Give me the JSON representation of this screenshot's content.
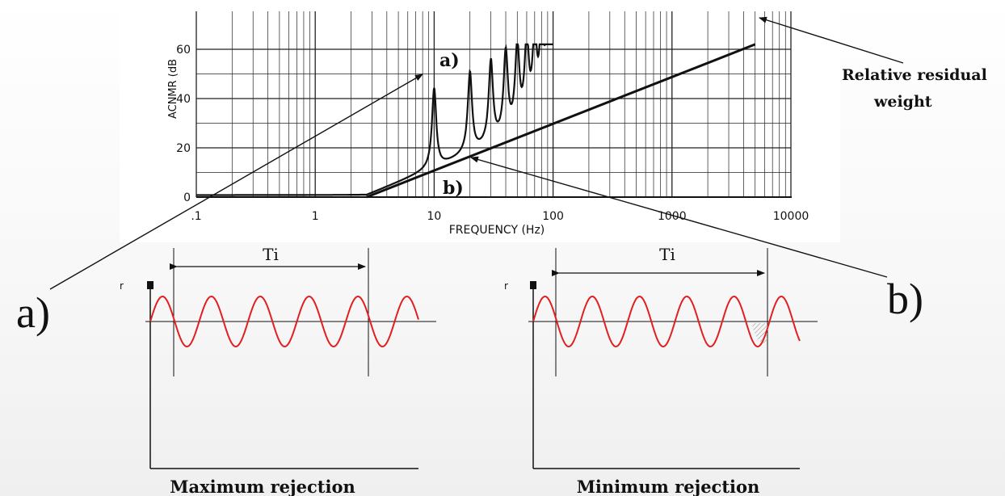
{
  "chart_data": {
    "type": "line",
    "xlabel": "FREQUENCY (Hz)",
    "ylabel": "ACNMR (dB",
    "x_scale": "log",
    "xlim": [
      0.1,
      10000
    ],
    "ylim": [
      0,
      62
    ],
    "x_ticks": [
      ".1",
      "1",
      "10",
      "100",
      "1000",
      "10000"
    ],
    "y_ticks": [
      "0",
      "20",
      "40",
      "60"
    ],
    "grid": true,
    "residual_weight_line": {
      "x": [
        2.7,
        5000
      ],
      "y": [
        0,
        62
      ]
    },
    "resonance_peaks": {
      "x": [
        10,
        20,
        30,
        40,
        50,
        60,
        70,
        80,
        90,
        100
      ],
      "y": [
        43,
        49,
        53,
        56,
        58,
        59.5,
        60.5,
        61,
        61.5,
        62
      ]
    },
    "point_a": {
      "x": 10,
      "y": 43
    },
    "point_b": {
      "x": 14,
      "y": 14
    }
  },
  "labels": {
    "point_a": "a)",
    "point_b": "b)",
    "relative_residual_line1": "Relative residual",
    "relative_residual_line2": "weight",
    "big_a": "a)",
    "big_b": "b)"
  },
  "left_panel": {
    "axis_label": "r",
    "interval_label": "Ti",
    "caption": "Maximum rejection",
    "wave_color": "#e02020"
  },
  "right_panel": {
    "axis_label": "r",
    "interval_label": "Ti",
    "caption": "Minimum rejection",
    "wave_color": "#e02020"
  }
}
